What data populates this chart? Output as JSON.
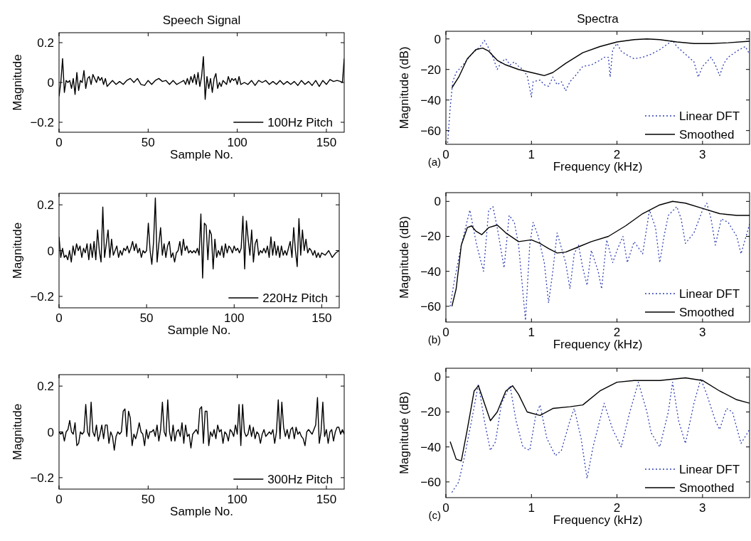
{
  "chart_data": [
    {
      "type": "line",
      "title": "Speech Signal",
      "xlabel": "Sample No.",
      "ylabel": "Magnitude",
      "xlim": [
        0,
        160
      ],
      "xticks": [
        {
          "value": 0,
          "label": "0"
        },
        {
          "value": 50,
          "label": "50"
        },
        {
          "value": 100,
          "label": "100"
        },
        {
          "value": 150,
          "label": "150"
        }
      ],
      "ylim": [
        -0.25,
        0.25
      ],
      "yticks": [
        {
          "value": -0.2,
          "label": "−0.2"
        },
        {
          "value": 0,
          "label": "0"
        },
        {
          "value": 0.2,
          "label": "0.2"
        }
      ],
      "legend": "bottom right",
      "series": [
        {
          "name": "100Hz Pitch",
          "color": "#000000",
          "x": [
            0,
            1,
            2,
            3,
            4,
            5,
            6,
            7,
            8,
            9,
            10,
            11,
            12,
            13,
            14,
            15,
            16,
            17,
            18,
            19,
            20,
            21,
            22,
            23,
            24,
            25,
            26,
            27,
            28,
            30,
            32,
            34,
            36,
            38,
            40,
            42,
            44,
            46,
            48,
            50,
            52,
            54,
            56,
            58,
            60,
            62,
            64,
            66,
            68,
            70,
            71,
            72,
            73,
            74,
            75,
            76,
            77,
            78,
            79,
            80,
            81,
            82,
            83,
            84,
            85,
            86,
            87,
            88,
            89,
            90,
            91,
            92,
            94,
            95,
            96,
            97,
            98,
            99,
            100,
            101,
            102,
            104,
            106,
            108,
            110,
            112,
            114,
            116,
            118,
            120,
            122,
            124,
            126,
            128,
            130,
            132,
            134,
            136,
            138,
            140,
            142,
            144,
            146,
            148,
            150,
            152,
            154,
            156,
            158,
            159,
            160
          ],
          "values": [
            -0.07,
            0.0,
            0.12,
            -0.05,
            0.01,
            0.0,
            0.01,
            -0.03,
            0.02,
            -0.06,
            0.05,
            -0.04,
            0.01,
            0.0,
            0.06,
            -0.03,
            0.02,
            0.03,
            -0.01,
            0.04,
            0.02,
            0.0,
            0.03,
            0.01,
            0.025,
            -0.01,
            0.02,
            -0.02,
            -0.01,
            0.01,
            -0.01,
            0.005,
            -0.01,
            0.01,
            0.02,
            0.0,
            0.02,
            -0.01,
            -0.015,
            0.01,
            -0.01,
            0.01,
            0.02,
            0.005,
            0.01,
            -0.01,
            0.01,
            -0.01,
            0.0,
            0.01,
            -0.01,
            0.02,
            -0.01,
            0.03,
            0.0,
            0.04,
            -0.01,
            0.05,
            -0.02,
            0.03,
            0.13,
            -0.085,
            0.03,
            -0.03,
            0.02,
            -0.05,
            0.02,
            0.045,
            -0.03,
            0.0,
            -0.02,
            0.01,
            -0.01,
            0.03,
            0.0,
            0.02,
            0.01,
            0.02,
            -0.01,
            0.03,
            -0.01,
            0.0,
            -0.01,
            0.01,
            -0.015,
            0.01,
            0.0,
            0.01,
            -0.01,
            0.005,
            -0.01,
            0.01,
            -0.01,
            0.005,
            -0.01,
            0.005,
            -0.015,
            0.01,
            -0.01,
            0.005,
            -0.015,
            0.01,
            -0.02,
            0.01,
            -0.01,
            0.015,
            0.005,
            0.01,
            0.005,
            0.0,
            0.12
          ]
        }
      ]
    },
    {
      "type": "line",
      "title": "Spectra",
      "xlabel": "Frequency (kHz)",
      "ylabel": "Magnitude (dB)",
      "xlim": [
        0,
        3.55
      ],
      "xticks": [
        0,
        1,
        2,
        3
      ],
      "ylim": [
        -69,
        5
      ],
      "yticks": [
        {
          "value": -60,
          "label": "−60"
        },
        {
          "value": -40,
          "label": "−40"
        },
        {
          "value": -20,
          "label": "−20"
        },
        {
          "value": 0,
          "label": "0"
        }
      ],
      "legend": "bottom right",
      "annotations": [
        "(a)"
      ],
      "series": [
        {
          "name": "Linear DFT",
          "color": "#3040b0",
          "line_style": "dotted",
          "x": [
            0.02,
            0.05,
            0.08,
            0.12,
            0.2,
            0.3,
            0.4,
            0.45,
            0.5,
            0.55,
            0.6,
            0.65,
            0.7,
            0.75,
            0.8,
            0.85,
            0.9,
            0.95,
            1.0,
            1.02,
            1.1,
            1.15,
            1.2,
            1.25,
            1.3,
            1.35,
            1.4,
            1.45,
            1.5,
            1.6,
            1.7,
            1.8,
            1.85,
            1.9,
            1.92,
            1.95,
            2.0,
            2.05,
            2.1,
            2.2,
            2.3,
            2.4,
            2.5,
            2.6,
            2.65,
            2.7,
            2.8,
            2.9,
            2.95,
            3.0,
            3.05,
            3.1,
            3.15,
            3.2,
            3.25,
            3.3,
            3.4,
            3.5,
            3.55
          ],
          "values": [
            -68,
            -45,
            -28,
            -22,
            -17,
            -10,
            -5,
            -1,
            -6,
            -12,
            -20,
            -15,
            -13,
            -17,
            -15,
            -18,
            -20,
            -24,
            -38,
            -28,
            -27,
            -30,
            -31,
            -25,
            -30,
            -28,
            -34,
            -28,
            -25,
            -18,
            -17,
            -14,
            -12,
            -12,
            -25,
            -7,
            -3,
            -8,
            -10,
            -13,
            -12,
            -10,
            -7,
            -3,
            -1,
            -5,
            -10,
            -15,
            -25,
            -18,
            -15,
            -12,
            -17,
            -24,
            -16,
            -12,
            -8,
            -5,
            -10
          ]
        },
        {
          "name": "Smoothed",
          "color": "#000000",
          "line_style": "solid",
          "x": [
            0.07,
            0.15,
            0.25,
            0.35,
            0.43,
            0.5,
            0.6,
            0.7,
            0.85,
            1.0,
            1.15,
            1.25,
            1.4,
            1.6,
            1.8,
            2.0,
            2.2,
            2.35,
            2.5,
            2.7,
            2.9,
            3.1,
            3.3,
            3.55
          ],
          "values": [
            -32,
            -25,
            -13,
            -7,
            -6,
            -8,
            -14,
            -17,
            -20,
            -22,
            -24,
            -22,
            -16,
            -9,
            -5,
            -2,
            -0.5,
            0,
            -0.5,
            -2,
            -3,
            -3,
            -2.5,
            -1.5
          ]
        }
      ]
    },
    {
      "type": "line",
      "xlabel": "Sample No.",
      "ylabel": "Magnitude",
      "xlim": [
        0,
        160
      ],
      "xticks": [
        0,
        50,
        100,
        150
      ],
      "ylim": [
        -0.25,
        0.25
      ],
      "yticks": [
        {
          "value": -0.2,
          "label": "−0.2"
        },
        {
          "value": 0,
          "label": "0"
        },
        {
          "value": 0.2,
          "label": "0.2"
        }
      ],
      "legend": "bottom right",
      "series": [
        {
          "name": "220Hz Pitch",
          "color": "#000000",
          "x": [
            0,
            1,
            2,
            3,
            4,
            5,
            6,
            7,
            8,
            9,
            10,
            11,
            12,
            13,
            14,
            15,
            16,
            17,
            18,
            19,
            20,
            21,
            22,
            23,
            24,
            25,
            26,
            27,
            28,
            29,
            30,
            31,
            32,
            33,
            34,
            35,
            36,
            37,
            38,
            39,
            40,
            41,
            42,
            43,
            44,
            45,
            46,
            47,
            48,
            49,
            50,
            51,
            52,
            53,
            54,
            55,
            56,
            57,
            58,
            59,
            60,
            61,
            62,
            63,
            64,
            65,
            66,
            67,
            68,
            69,
            70,
            71,
            72,
            73,
            74,
            75,
            76,
            77,
            78,
            79,
            80,
            81,
            82,
            83,
            84,
            85,
            86,
            87,
            88,
            89,
            90,
            91,
            92,
            93,
            94,
            95,
            96,
            97,
            98,
            99,
            100,
            101,
            102,
            103,
            104,
            105,
            106,
            107,
            108,
            109,
            110,
            111,
            112,
            113,
            114,
            115,
            116,
            117,
            118,
            119,
            120,
            121,
            122,
            123,
            124,
            125,
            126,
            127,
            128,
            129,
            130,
            131,
            132,
            133,
            134,
            135,
            136,
            137,
            138,
            139,
            140,
            141,
            142,
            143,
            144,
            145,
            146,
            147,
            148,
            149,
            150,
            152,
            154,
            156,
            158,
            160
          ],
          "values": [
            0.06,
            -0.03,
            0.01,
            -0.03,
            -0.02,
            -0.04,
            0.0,
            -0.05,
            0.02,
            -0.02,
            0.03,
            0.0,
            0.02,
            -0.03,
            0.01,
            -0.01,
            0.03,
            -0.04,
            0.03,
            -0.03,
            0.04,
            -0.04,
            0.09,
            0.0,
            -0.05,
            0.19,
            -0.03,
            0.03,
            0.09,
            -0.03,
            0.05,
            -0.02,
            0.0,
            0.02,
            -0.03,
            0.0,
            -0.02,
            0.01,
            0.0,
            0.02,
            -0.01,
            0.01,
            0.04,
            0.0,
            0.03,
            -0.01,
            0.01,
            -0.03,
            0.0,
            -0.01,
            0.0,
            0.12,
            0.0,
            -0.06,
            0.04,
            0.23,
            -0.05,
            0.03,
            0.1,
            -0.02,
            0.03,
            -0.03,
            0.02,
            0.04,
            -0.03,
            -0.01,
            -0.05,
            -0.01,
            0.0,
            0.04,
            -0.02,
            0.05,
            0.0,
            0.02,
            -0.01,
            0.0,
            -0.01,
            0.0,
            -0.01,
            0.01,
            -0.02,
            0.16,
            -0.12,
            0.12,
            0.11,
            -0.04,
            0.09,
            0.07,
            -0.08,
            0.05,
            -0.03,
            0.0,
            -0.02,
            0.02,
            -0.03,
            0.03,
            -0.01,
            0.02,
            0.01,
            -0.01,
            0.02,
            0.0,
            0.01,
            -0.01,
            0.01,
            0.15,
            -0.08,
            0.13,
            0.05,
            -0.02,
            0.09,
            -0.05,
            0.03,
            0.05,
            -0.02,
            0.0,
            -0.01,
            0.01,
            -0.01,
            0.02,
            -0.03,
            0.06,
            -0.02,
            0.04,
            -0.02,
            0.02,
            -0.03,
            0.02,
            -0.02,
            0.0,
            -0.02,
            0.01,
            0.04,
            -0.03,
            0.1,
            0.0,
            -0.07,
            0.14,
            -0.02,
            0.09,
            0.0,
            0.05,
            -0.01,
            0.01,
            0.0,
            -0.02,
            0.0,
            -0.03,
            -0.01,
            -0.03,
            -0.01,
            -0.02,
            0.0,
            -0.03,
            -0.01,
            0.0
          ]
        }
      ]
    },
    {
      "type": "line",
      "xlabel": "Frequency (kHz)",
      "ylabel": "Magnitude (dB)",
      "xlim": [
        0,
        3.55
      ],
      "xticks": [
        0,
        1,
        2,
        3
      ],
      "ylim": [
        -69,
        5
      ],
      "yticks": [
        {
          "value": -60,
          "label": "−60"
        },
        {
          "value": -40,
          "label": "−40"
        },
        {
          "value": -20,
          "label": "−20"
        },
        {
          "value": 0,
          "label": "0"
        }
      ],
      "legend": "bottom right",
      "annotations": [
        "(b)"
      ],
      "series": [
        {
          "name": "Linear DFT",
          "color": "#3040b0",
          "line_style": "dotted",
          "x": [
            0.05,
            0.1,
            0.18,
            0.28,
            0.36,
            0.44,
            0.5,
            0.55,
            0.6,
            0.68,
            0.74,
            0.8,
            0.85,
            0.93,
            0.98,
            1.02,
            1.08,
            1.15,
            1.2,
            1.25,
            1.3,
            1.4,
            1.45,
            1.5,
            1.55,
            1.6,
            1.65,
            1.7,
            1.78,
            1.82,
            1.88,
            1.95,
            2.0,
            2.07,
            2.12,
            2.2,
            2.3,
            2.38,
            2.45,
            2.5,
            2.55,
            2.6,
            2.7,
            2.75,
            2.8,
            2.9,
            3.0,
            3.05,
            3.1,
            3.15,
            3.22,
            3.3,
            3.4,
            3.45,
            3.55
          ],
          "values": [
            -60,
            -45,
            -25,
            -5,
            -25,
            -40,
            -5,
            -3,
            -15,
            -38,
            -8,
            -12,
            -25,
            -68,
            -25,
            -12,
            -20,
            -35,
            -58,
            -40,
            -18,
            -35,
            -50,
            -30,
            -25,
            -38,
            -48,
            -28,
            -40,
            -50,
            -22,
            -35,
            -28,
            -20,
            -35,
            -23,
            -30,
            -5,
            -15,
            -35,
            -20,
            -8,
            -3,
            -10,
            -24,
            -18,
            -5,
            -1,
            -10,
            -25,
            -10,
            -12,
            -20,
            -30,
            -13
          ]
        },
        {
          "name": "Smoothed",
          "color": "#000000",
          "line_style": "solid",
          "x": [
            0.07,
            0.12,
            0.18,
            0.25,
            0.3,
            0.35,
            0.42,
            0.5,
            0.6,
            0.7,
            0.85,
            1.0,
            1.1,
            1.2,
            1.3,
            1.4,
            1.55,
            1.7,
            1.9,
            2.1,
            2.3,
            2.5,
            2.65,
            2.8,
            3.0,
            3.2,
            3.4,
            3.55
          ],
          "values": [
            -60,
            -50,
            -25,
            -15,
            -14,
            -17,
            -19,
            -15,
            -13.5,
            -18,
            -23,
            -22,
            -24,
            -27,
            -29.5,
            -29,
            -26,
            -23,
            -20,
            -14,
            -7,
            -2,
            0,
            -1,
            -4,
            -7,
            -8,
            -8
          ]
        }
      ]
    },
    {
      "type": "line",
      "xlabel": "Sample No.",
      "ylabel": "Magnitude",
      "xlim": [
        0,
        160
      ],
      "xticks": [
        0,
        50,
        100,
        150
      ],
      "ylim": [
        -0.25,
        0.25
      ],
      "yticks": [
        {
          "value": -0.2,
          "label": "−0.2"
        },
        {
          "value": 0,
          "label": "0"
        },
        {
          "value": 0.2,
          "label": "0.2"
        }
      ],
      "legend": "bottom right",
      "series": [
        {
          "name": "300Hz Pitch",
          "color": "#000000",
          "x": [
            0,
            1,
            2,
            3,
            4,
            5,
            6,
            7,
            8,
            9,
            10,
            11,
            12,
            13,
            14,
            15,
            16,
            17,
            18,
            19,
            20,
            21,
            22,
            23,
            24,
            25,
            26,
            27,
            28,
            29,
            30,
            31,
            32,
            33,
            34,
            35,
            36,
            37,
            38,
            39,
            40,
            41,
            42,
            43,
            44,
            45,
            46,
            47,
            48,
            49,
            50,
            51,
            52,
            53,
            54,
            55,
            56,
            57,
            58,
            59,
            60,
            61,
            62,
            63,
            64,
            65,
            66,
            67,
            68,
            69,
            70,
            71,
            72,
            73,
            74,
            75,
            76,
            77,
            78,
            79,
            80,
            81,
            82,
            83,
            84,
            85,
            86,
            87,
            88,
            89,
            90,
            91,
            92,
            93,
            94,
            95,
            96,
            97,
            98,
            99,
            100,
            101,
            102,
            103,
            104,
            105,
            106,
            107,
            108,
            109,
            110,
            111,
            112,
            113,
            114,
            115,
            116,
            117,
            118,
            119,
            120,
            121,
            122,
            123,
            124,
            125,
            126,
            127,
            128,
            129,
            130,
            131,
            132,
            133,
            134,
            135,
            136,
            137,
            138,
            139,
            140,
            141,
            142,
            143,
            144,
            145,
            146,
            147,
            148,
            149,
            150,
            151,
            152,
            153,
            154,
            155,
            156,
            157,
            158,
            159,
            160
          ],
          "values": [
            0.0,
            -0.01,
            0.0,
            -0.04,
            0.0,
            0.01,
            0.05,
            0.0,
            -0.01,
            0.04,
            -0.06,
            -0.05,
            0.0,
            -0.01,
            0.0,
            0.12,
            0.0,
            -0.02,
            0.13,
            0.0,
            -0.02,
            0.03,
            -0.04,
            -0.01,
            0.03,
            -0.03,
            0.03,
            0.03,
            -0.05,
            0.0,
            -0.02,
            -0.08,
            -0.02,
            0.0,
            -0.01,
            0.0,
            0.09,
            0.1,
            -0.02,
            0.09,
            0.06,
            -0.06,
            -0.01,
            -0.03,
            0.0,
            0.04,
            0.0,
            -0.01,
            -0.06,
            0.01,
            -0.03,
            0.0,
            0.0,
            0.01,
            -0.02,
            0.03,
            -0.04,
            0.01,
            0.13,
            0.0,
            -0.02,
            0.14,
            0.0,
            -0.04,
            0.03,
            -0.04,
            0.0,
            0.01,
            -0.02,
            0.04,
            -0.05,
            0.03,
            -0.02,
            -0.01,
            -0.07,
            -0.01,
            0.0,
            0.01,
            -0.01,
            0.1,
            0.11,
            -0.05,
            0.09,
            0.09,
            -0.06,
            0.0,
            -0.02,
            0.01,
            -0.03,
            0.03,
            0.0,
            0.01,
            -0.05,
            0.0,
            -0.01,
            -0.04,
            0.01,
            0.0,
            -0.02,
            0.03,
            -0.01,
            0.12,
            -0.06,
            0.12,
            0.0,
            -0.02,
            -0.01,
            0.03,
            -0.02,
            0.02,
            -0.03,
            0.0,
            -0.01,
            -0.05,
            -0.01,
            0.01,
            -0.02,
            -0.01,
            0.0,
            -0.01,
            0.01,
            -0.05,
            0.0,
            0.14,
            -0.03,
            0.13,
            0.02,
            -0.02,
            0.01,
            -0.03,
            0.01,
            0.02,
            -0.03,
            0.02,
            -0.01,
            0.0,
            -0.02,
            -0.03,
            -0.06,
            0.0,
            0.01,
            0.0,
            -0.01,
            0.01,
            0.03,
            0.15,
            -0.05,
            0.0,
            0.13,
            -0.02,
            0.01,
            -0.05,
            0.0,
            0.01,
            -0.04,
            0.0,
            0.02,
            0.02,
            -0.01,
            0.01,
            -0.01
          ]
        }
      ]
    },
    {
      "type": "line",
      "xlabel": "Frequency (kHz)",
      "ylabel": "Magnitude (dB)",
      "xlim": [
        0,
        3.55
      ],
      "xticks": [
        0,
        1,
        2,
        3
      ],
      "ylim": [
        -69,
        5
      ],
      "yticks": [
        {
          "value": -60,
          "label": "−60"
        },
        {
          "value": -40,
          "label": "−40"
        },
        {
          "value": -20,
          "label": "−20"
        },
        {
          "value": 0,
          "label": "0"
        }
      ],
      "legend": "bottom right",
      "annotations": [
        "(c)"
      ],
      "series": [
        {
          "name": "Linear DFT",
          "color": "#3040b0",
          "line_style": "dotted",
          "x": [
            0.07,
            0.15,
            0.22,
            0.3,
            0.38,
            0.45,
            0.52,
            0.58,
            0.65,
            0.75,
            0.82,
            0.9,
            0.98,
            1.05,
            1.1,
            1.18,
            1.28,
            1.35,
            1.45,
            1.5,
            1.58,
            1.65,
            1.72,
            1.85,
            1.95,
            2.05,
            2.15,
            2.25,
            2.35,
            2.4,
            2.5,
            2.6,
            2.65,
            2.72,
            2.8,
            2.9,
            2.98,
            3.05,
            3.15,
            3.2,
            3.28,
            3.35,
            3.45,
            3.55
          ],
          "values": [
            -66,
            -60,
            -45,
            -25,
            -4,
            -25,
            -42,
            -37,
            -15,
            -5,
            -25,
            -40,
            -42,
            -22,
            -16,
            -35,
            -45,
            -42,
            -25,
            -18,
            -35,
            -58,
            -40,
            -15,
            -30,
            -40,
            -20,
            -3,
            -20,
            -32,
            -40,
            -20,
            -3,
            -25,
            -38,
            -15,
            -1,
            -10,
            -25,
            -30,
            -18,
            -20,
            -38,
            -30
          ]
        },
        {
          "name": "Smoothed",
          "color": "#000000",
          "line_style": "solid",
          "x": [
            0.05,
            0.12,
            0.18,
            0.25,
            0.33,
            0.38,
            0.45,
            0.52,
            0.6,
            0.7,
            0.78,
            0.85,
            0.95,
            1.1,
            1.25,
            1.45,
            1.6,
            1.8,
            2.0,
            2.2,
            2.5,
            2.8,
            3.0,
            3.2,
            3.4,
            3.55
          ],
          "values": [
            -37,
            -47,
            -48,
            -30,
            -8,
            -5,
            -15,
            -25,
            -20,
            -8,
            -5,
            -10,
            -20,
            -22,
            -18,
            -17,
            -16,
            -8,
            -3,
            -2,
            -2,
            -0.5,
            -2,
            -8,
            -13,
            -15
          ]
        }
      ]
    }
  ]
}
